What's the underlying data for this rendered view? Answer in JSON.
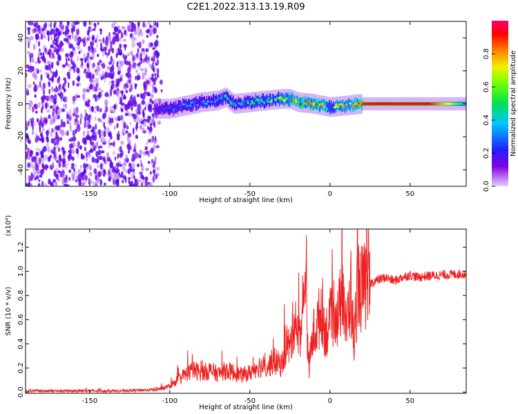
{
  "figure_title": "C2E1.2022.313.13.19.R09",
  "chart_data": [
    {
      "type": "heatmap",
      "panel": "top",
      "xlabel": "Height of straight line (km)",
      "ylabel": "Frequency (Hz)",
      "xlim": [
        -190,
        85
      ],
      "ylim": [
        -50,
        50
      ],
      "x_ticks": [
        -150,
        -100,
        -50,
        0,
        50
      ],
      "y_ticks": [
        -40,
        -20,
        0,
        20,
        40
      ],
      "x_tick_labels": [
        "-150",
        "-100",
        "-50",
        "0",
        "50"
      ],
      "y_tick_labels": [
        "-40",
        "-20",
        "0",
        "20",
        "40"
      ],
      "colorbar": {
        "label": "Normalized spectral amplitude",
        "range": [
          0,
          1
        ],
        "ticks": [
          0.0,
          0.2,
          0.4,
          0.6,
          0.8
        ],
        "tick_labels": [
          "0.0",
          "0.2",
          "0.4",
          "0.6",
          "0.8"
        ],
        "colormap": [
          "#f0e0ff",
          "#7000e0",
          "#3020ff",
          "#00c8ff",
          "#00ff40",
          "#f0ff00",
          "#ff8000",
          "#ff0000",
          "#ff0070"
        ]
      },
      "noise_region_x": [
        -190,
        -107
      ],
      "ridge": {
        "x": [
          -110,
          -100,
          -90,
          -80,
          -70,
          -65,
          -60,
          -50,
          -40,
          -30,
          -25,
          -20,
          -10,
          0,
          10,
          20,
          40,
          60,
          85
        ],
        "frequency": [
          -3,
          -3,
          -1,
          1,
          2,
          4,
          0,
          1,
          2,
          3,
          3,
          1,
          0,
          -2,
          -1,
          0,
          0,
          0,
          0
        ],
        "amplitude": [
          0.2,
          0.3,
          0.35,
          0.35,
          0.4,
          0.5,
          0.4,
          0.45,
          0.5,
          0.55,
          0.7,
          0.75,
          0.8,
          0.6,
          0.7,
          0.85,
          0.9,
          0.9,
          0.4
        ]
      }
    },
    {
      "type": "line",
      "panel": "bottom",
      "xlabel": "Height of straight line (km)",
      "ylabel": "SNR (10 * v/v)",
      "y_multiplier": "(x10⁴)",
      "xlim": [
        -190,
        85
      ],
      "ylim": [
        -0.01,
        1.35
      ],
      "x_ticks": [
        -150,
        -100,
        -50,
        0,
        50
      ],
      "y_ticks": [
        0.0,
        0.2,
        0.4,
        0.6,
        0.8,
        1.0,
        1.2
      ],
      "x_tick_labels": [
        "-150",
        "-100",
        "-50",
        "0",
        "50"
      ],
      "y_tick_labels": [
        "0.0",
        "0.2",
        "0.4",
        "0.6",
        "0.8",
        "1.0",
        "1.2"
      ],
      "color": "#ee2222",
      "series": [
        {
          "x": [
            -190,
            -170,
            -150,
            -130,
            -110,
            -105,
            -100,
            -95,
            -90,
            -85,
            -80,
            -75,
            -70,
            -65,
            -60,
            -55,
            -50,
            -45,
            -40,
            -35,
            -30,
            -27,
            -25,
            -22,
            -20,
            -18,
            -16,
            -15,
            -14,
            -13,
            -12,
            -10,
            -8,
            -5,
            -3,
            0,
            3,
            5,
            8,
            10,
            13,
            15,
            17,
            20,
            25,
            30,
            35,
            40,
            45,
            50,
            55,
            60,
            70,
            85
          ],
          "values": [
            0.01,
            0.01,
            0.01,
            0.01,
            0.02,
            0.03,
            0.05,
            0.1,
            0.15,
            0.18,
            0.16,
            0.18,
            0.15,
            0.18,
            0.16,
            0.14,
            0.16,
            0.22,
            0.2,
            0.26,
            0.22,
            0.42,
            0.35,
            0.65,
            0.45,
            0.55,
            0.7,
            1.33,
            0.35,
            0.2,
            0.35,
            0.5,
            0.55,
            0.7,
            0.5,
            0.55,
            0.72,
            0.6,
            0.9,
            0.5,
            0.85,
            0.38,
            0.9,
            0.85,
            0.9,
            0.93,
            0.95,
            0.92,
            0.95,
            0.97,
            0.95,
            0.96,
            0.97,
            0.98
          ]
        }
      ]
    }
  ]
}
